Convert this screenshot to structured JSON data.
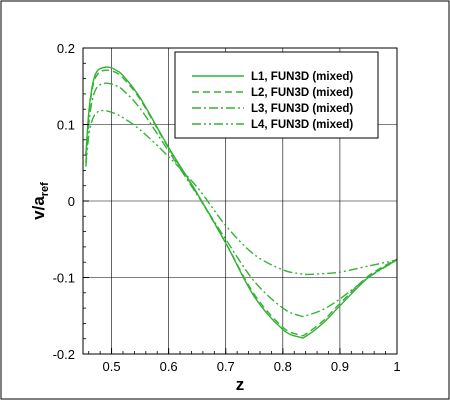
{
  "chart_data": {
    "type": "line",
    "xlabel": "z",
    "ylabel": {
      "main": "v/a",
      "sub": "ref"
    },
    "xlim": [
      0.45,
      1.0
    ],
    "ylim": [
      -0.2,
      0.2
    ],
    "xticks": [
      0.5,
      0.6,
      0.7,
      0.8,
      0.9,
      1.0
    ],
    "xtick_labels": [
      "0.5",
      "0.6",
      "0.7",
      "0.8",
      "0.9",
      "1"
    ],
    "yticks": [
      -0.2,
      -0.1,
      0.0,
      0.1,
      0.2
    ],
    "ytick_labels": [
      "-0.2",
      "-0.1",
      "0",
      "0.1",
      "0.2"
    ],
    "grid": true,
    "legend_position": "top-right",
    "line_color": "#33b233",
    "series": [
      {
        "name": "L1, FUN3D (mixed)",
        "dash": "solid",
        "x": [
          0.455,
          0.46,
          0.465,
          0.47,
          0.475,
          0.48,
          0.49,
          0.5,
          0.51,
          0.52,
          0.55,
          0.6,
          0.65,
          0.7,
          0.75,
          0.8,
          0.83,
          0.84,
          0.87,
          0.9,
          0.95,
          1.0
        ],
        "y": [
          0.06,
          0.115,
          0.145,
          0.162,
          0.17,
          0.173,
          0.175,
          0.174,
          0.17,
          0.164,
          0.135,
          0.07,
          0.01,
          -0.055,
          -0.125,
          -0.168,
          -0.178,
          -0.177,
          -0.16,
          -0.137,
          -0.1,
          -0.077
        ]
      },
      {
        "name": "L2, FUN3D (mixed)",
        "dash": "dashed",
        "x": [
          0.455,
          0.46,
          0.465,
          0.47,
          0.475,
          0.48,
          0.49,
          0.5,
          0.51,
          0.52,
          0.55,
          0.6,
          0.65,
          0.7,
          0.75,
          0.8,
          0.83,
          0.84,
          0.87,
          0.9,
          0.95,
          1.0
        ],
        "y": [
          0.06,
          0.112,
          0.141,
          0.158,
          0.165,
          0.169,
          0.171,
          0.17,
          0.167,
          0.161,
          0.133,
          0.069,
          0.009,
          -0.055,
          -0.122,
          -0.165,
          -0.175,
          -0.174,
          -0.157,
          -0.134,
          -0.098,
          -0.076
        ]
      },
      {
        "name": "L3, FUN3D (mixed)",
        "dash": "dashdot",
        "x": [
          0.455,
          0.46,
          0.465,
          0.47,
          0.475,
          0.48,
          0.49,
          0.5,
          0.51,
          0.52,
          0.55,
          0.6,
          0.65,
          0.7,
          0.75,
          0.8,
          0.83,
          0.84,
          0.87,
          0.9,
          0.95,
          1.0
        ],
        "y": [
          0.05,
          0.1,
          0.127,
          0.142,
          0.149,
          0.152,
          0.154,
          0.153,
          0.15,
          0.145,
          0.121,
          0.065,
          0.008,
          -0.05,
          -0.105,
          -0.14,
          -0.15,
          -0.15,
          -0.142,
          -0.128,
          -0.1,
          -0.077
        ]
      },
      {
        "name": "L4, FUN3D (mixed)",
        "dash": "dashdotdot",
        "x": [
          0.455,
          0.46,
          0.465,
          0.47,
          0.475,
          0.48,
          0.49,
          0.5,
          0.51,
          0.52,
          0.55,
          0.6,
          0.65,
          0.7,
          0.75,
          0.8,
          0.83,
          0.84,
          0.87,
          0.9,
          0.95,
          1.0
        ],
        "y": [
          0.045,
          0.085,
          0.103,
          0.112,
          0.116,
          0.118,
          0.118,
          0.116,
          0.113,
          0.109,
          0.093,
          0.058,
          0.018,
          -0.032,
          -0.07,
          -0.09,
          -0.095,
          -0.096,
          -0.095,
          -0.093,
          -0.085,
          -0.077
        ]
      }
    ]
  }
}
